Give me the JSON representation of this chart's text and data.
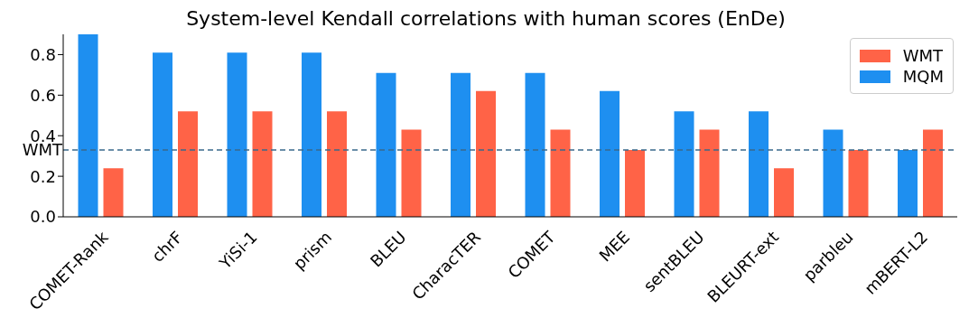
{
  "chart_data": {
    "type": "bar",
    "title": "System-level Kendall correlations with human scores (EnDe)",
    "categories": [
      "COMET-Rank",
      "chrF",
      "YiSi-1",
      "prism",
      "BLEU",
      "CharacTER",
      "COMET",
      "MEE",
      "sentBLEU",
      "BLEURT-ext",
      "parbleu",
      "mBERT-L2"
    ],
    "series": [
      {
        "name": "MQM",
        "color": "#1e8ff0",
        "values": [
          0.9,
          0.81,
          0.81,
          0.81,
          0.71,
          0.71,
          0.71,
          0.62,
          0.52,
          0.52,
          0.43,
          0.33
        ]
      },
      {
        "name": "WMT",
        "color": "#ff6347",
        "values": [
          0.24,
          0.52,
          0.52,
          0.52,
          0.43,
          0.62,
          0.43,
          0.33,
          0.43,
          0.24,
          0.33,
          0.43
        ]
      }
    ],
    "ylim": [
      0,
      0.9
    ],
    "yticks": [
      {
        "value": 0,
        "label": "0.0"
      },
      {
        "value": 0.2,
        "label": "0.2"
      },
      {
        "value": 0.4,
        "label": "0.4"
      },
      {
        "value": 0.6,
        "label": "0.6"
      },
      {
        "value": 0.8,
        "label": "0.8"
      }
    ],
    "ref_lines": [
      {
        "axis": "y",
        "value": 0.33,
        "label": "WMT",
        "color": "#3a6a8c",
        "line_style": "dashed"
      }
    ],
    "legend": "top right",
    "grid": false
  }
}
